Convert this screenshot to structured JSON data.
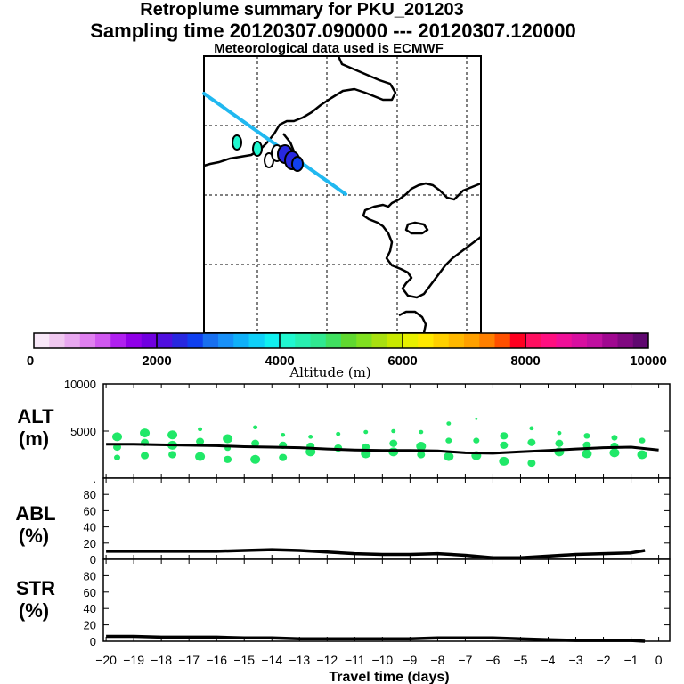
{
  "header": {
    "title": "Retroplume summary for PKU_201203",
    "sampling": "Sampling time   20120307.090000 --- 20120307.120000",
    "met": "Meteorological data used is ECMWF"
  },
  "colorbar": {
    "label": "Altitude (m)",
    "ticks": [
      "0",
      "2000",
      "4000",
      "6000",
      "8000",
      "10000"
    ],
    "colors": [
      "#f8e8f8",
      "#f0c8f0",
      "#e8a8f0",
      "#e080f0",
      "#d058f0",
      "#b020f0",
      "#9000e8",
      "#7000e0",
      "#5010e0",
      "#2828e0",
      "#1040f0",
      "#1870f0",
      "#1890f8",
      "#10b0f8",
      "#10d0f8",
      "#10f0f0",
      "#20f8d0",
      "#28f0b0",
      "#30e890",
      "#40e060",
      "#60d830",
      "#80e020",
      "#a8e010",
      "#c8e800",
      "#e8f000",
      "#ffe800",
      "#ffd000",
      "#ffb800",
      "#ffa000",
      "#ff8000",
      "#ff5000",
      "#ff0020",
      "#ff1060",
      "#ff1080",
      "#f01098",
      "#d810a0",
      "#c010a0",
      "#a00890",
      "#800880",
      "#600870"
    ]
  },
  "map": {
    "trajectory_color": "#20b8f0"
  },
  "chart_data": [
    {
      "type": "scatter",
      "title": "ALT",
      "ylabel": "ALT (m)",
      "panel_label_top": "ALT",
      "panel_label_bottom": "(m)",
      "ylim": [
        0,
        10000
      ],
      "yticks": [
        "10000",
        "5000",
        "."
      ],
      "x": [
        -20,
        -19,
        -18,
        -17,
        -16,
        -15,
        -14,
        -13,
        -12,
        -11,
        -10,
        -9,
        -8,
        -7,
        -6,
        -5,
        -4,
        -3,
        -2,
        -1,
        0
      ],
      "mean_line": [
        3600,
        3600,
        3550,
        3500,
        3450,
        3350,
        3300,
        3250,
        3100,
        3000,
        2950,
        2950,
        2900,
        2700,
        2650,
        2800,
        2950,
        3100,
        3250,
        3300,
        3000
      ],
      "points": [
        [
          -19.6,
          4400,
          5
        ],
        [
          -19.6,
          3300,
          4
        ],
        [
          -19.6,
          2200,
          3
        ],
        [
          -18.6,
          4800,
          5
        ],
        [
          -18.6,
          3800,
          4
        ],
        [
          -18.6,
          2400,
          4
        ],
        [
          -17.6,
          4600,
          5
        ],
        [
          -17.6,
          3500,
          5
        ],
        [
          -17.6,
          2500,
          4
        ],
        [
          -16.6,
          5200,
          2
        ],
        [
          -16.6,
          3900,
          4
        ],
        [
          -16.6,
          2300,
          5
        ],
        [
          -15.6,
          4200,
          5
        ],
        [
          -15.6,
          3200,
          3
        ],
        [
          -15.6,
          2000,
          4
        ],
        [
          -14.6,
          5400,
          2
        ],
        [
          -14.6,
          3700,
          4
        ],
        [
          -14.6,
          2000,
          5
        ],
        [
          -13.6,
          4600,
          2
        ],
        [
          -13.6,
          3500,
          4
        ],
        [
          -13.6,
          2200,
          4
        ],
        [
          -12.6,
          4400,
          2
        ],
        [
          -12.6,
          3400,
          4
        ],
        [
          -12.6,
          2800,
          5
        ],
        [
          -11.6,
          4700,
          2
        ],
        [
          -11.6,
          3200,
          4
        ],
        [
          -10.6,
          4900,
          2
        ],
        [
          -10.6,
          3300,
          4
        ],
        [
          -10.6,
          2600,
          5
        ],
        [
          -9.6,
          5000,
          2
        ],
        [
          -9.6,
          3700,
          4
        ],
        [
          -9.6,
          2800,
          5
        ],
        [
          -8.6,
          4900,
          2
        ],
        [
          -8.6,
          3400,
          5
        ],
        [
          -8.6,
          2500,
          4
        ],
        [
          -7.6,
          5800,
          2
        ],
        [
          -7.6,
          4000,
          3
        ],
        [
          -7.6,
          2300,
          5
        ],
        [
          -6.6,
          6300,
          1
        ],
        [
          -6.6,
          4000,
          3
        ],
        [
          -6.6,
          2400,
          5
        ],
        [
          -5.6,
          4500,
          4
        ],
        [
          -5.6,
          3500,
          4
        ],
        [
          -5.6,
          1800,
          5
        ],
        [
          -4.6,
          5300,
          2
        ],
        [
          -4.6,
          3800,
          4
        ],
        [
          -4.6,
          1600,
          4
        ],
        [
          -3.6,
          4800,
          2
        ],
        [
          -3.6,
          3700,
          4
        ],
        [
          -3.6,
          2800,
          5
        ],
        [
          -2.6,
          4500,
          3
        ],
        [
          -2.6,
          3500,
          4
        ],
        [
          -2.6,
          2600,
          5
        ],
        [
          -1.6,
          4300,
          3
        ],
        [
          -1.6,
          3400,
          4
        ],
        [
          -1.6,
          2700,
          5
        ],
        [
          -0.6,
          4000,
          3
        ],
        [
          -0.6,
          2500,
          5
        ]
      ]
    },
    {
      "type": "line",
      "title": "ABL",
      "panel_label_top": "ABL",
      "panel_label_bottom": "(%)",
      "ylim": [
        0,
        100
      ],
      "yticks": [
        "80",
        "60",
        "40",
        "20",
        "0"
      ],
      "x": [
        -20,
        -19,
        -18,
        -17,
        -16,
        -15,
        -14,
        -13,
        -12,
        -11,
        -10,
        -9,
        -8,
        -7,
        -6,
        -5,
        -4,
        -3,
        -2,
        -1,
        -0.5
      ],
      "values": [
        10,
        10,
        10,
        10,
        10,
        11,
        12,
        11,
        9,
        7,
        6,
        6,
        7,
        5,
        2,
        2,
        4,
        6,
        7,
        8,
        11
      ]
    },
    {
      "type": "line",
      "title": "STR",
      "panel_label_top": "STR",
      "panel_label_bottom": "(%)",
      "ylim": [
        0,
        100
      ],
      "yticks": [
        "80",
        "60",
        "40",
        "20",
        "0"
      ],
      "x": [
        -20,
        -19,
        -18,
        -17,
        -16,
        -15,
        -14,
        -13,
        -12,
        -11,
        -10,
        -9,
        -8,
        -7,
        -6,
        -5,
        -4,
        -3,
        -2,
        -1,
        -0.5
      ],
      "values": [
        6,
        6,
        5,
        5,
        5,
        4,
        4,
        3,
        3,
        3,
        3,
        3,
        4,
        4,
        4,
        3,
        2,
        1,
        1,
        1,
        0
      ],
      "xlabel": "Travel time (days)",
      "xticks": [
        "−20",
        "−19",
        "−18",
        "−17",
        "−16",
        "−15",
        "−14",
        "−13",
        "−12",
        "−11",
        "−10",
        "−9",
        "−8",
        "−7",
        "−6",
        "−5",
        "−4",
        "−3",
        "−2",
        "−1",
        "0"
      ]
    }
  ]
}
